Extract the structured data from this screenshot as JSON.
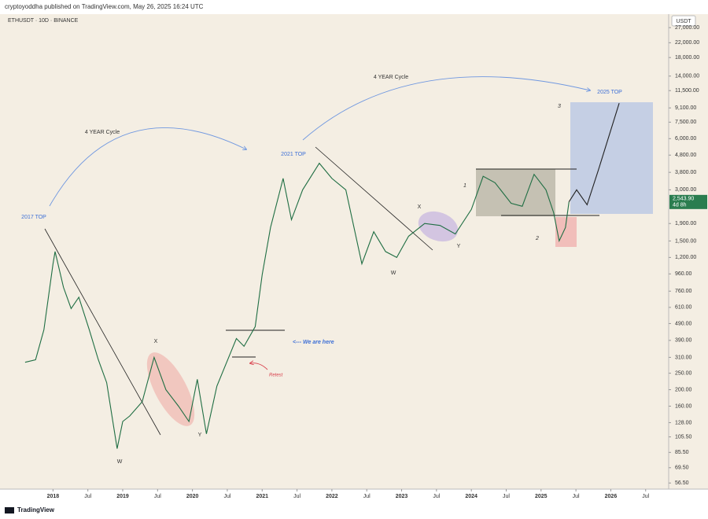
{
  "header": "cryptoyoddha published on TradingView.com, May 26, 2025 16:24 UTC",
  "footer": "TradingView",
  "chart_data": {
    "type": "line",
    "title": "ETHUSDT · 10D · BINANCE",
    "y_unit": "USDT",
    "log_scale": true,
    "grid": false,
    "x": [
      2017.6,
      2017.75,
      2017.87,
      2018.0,
      2018.03,
      2018.15,
      2018.26,
      2018.37,
      2018.52,
      2018.65,
      2018.77,
      2018.92,
      2019.0,
      2019.1,
      2019.28,
      2019.45,
      2019.62,
      2019.8,
      2019.95,
      2020.07,
      2020.2,
      2020.35,
      2020.52,
      2020.63,
      2020.74,
      2020.9,
      2021.0,
      2021.12,
      2021.3,
      2021.42,
      2021.58,
      2021.82,
      2022.0,
      2022.2,
      2022.43,
      2022.6,
      2022.77,
      2022.93,
      2023.1,
      2023.33,
      2023.55,
      2023.77,
      2024.0,
      2024.17,
      2024.34,
      2024.57,
      2024.73,
      2024.9,
      2025.07,
      2025.18,
      2025.26,
      2025.35,
      2025.4,
      2025.51,
      2025.66,
      2025.82,
      2026.12
    ],
    "series": [
      {
        "color": "#1f6e43",
        "values": [
          290,
          300,
          450,
          1100,
          1300,
          800,
          600,
          700,
          450,
          300,
          220,
          90,
          130,
          140,
          170,
          310,
          200,
          160,
          130,
          230,
          110,
          210,
          310,
          400,
          360,
          470,
          950,
          1800,
          3500,
          2000,
          3000,
          4300,
          3500,
          3000,
          1100,
          1700,
          1300,
          1200,
          1600,
          1900,
          1850,
          1650,
          2300,
          3600,
          3300,
          2500,
          2400,
          3700,
          3000,
          2200,
          1500,
          1800,
          2550,
          null,
          null,
          null,
          null
        ]
      },
      {
        "color": "#222222",
        "values": [
          null,
          null,
          null,
          null,
          null,
          null,
          null,
          null,
          null,
          null,
          null,
          null,
          null,
          null,
          null,
          null,
          null,
          null,
          null,
          null,
          null,
          null,
          null,
          null,
          null,
          null,
          null,
          null,
          null,
          null,
          null,
          null,
          null,
          null,
          null,
          null,
          null,
          null,
          null,
          null,
          null,
          null,
          null,
          null,
          null,
          null,
          null,
          null,
          null,
          null,
          null,
          null,
          2550,
          3000,
          2450,
          3900,
          9700
        ]
      }
    ],
    "xlim": [
      2017.24,
      2026.83
    ],
    "xticks": [
      2018,
      {
        "value": 2018.5,
        "label": "Jul"
      },
      2019,
      {
        "value": 2019.5,
        "label": "Jul"
      },
      2020,
      {
        "value": 2020.5,
        "label": "Jul"
      },
      2021,
      {
        "value": 2021.5,
        "label": "Jul"
      },
      2022,
      {
        "value": 2022.5,
        "label": "Jul"
      },
      2023,
      {
        "value": 2023.5,
        "label": "Jul"
      },
      2024,
      {
        "value": 2024.5,
        "label": "Jul"
      },
      2025,
      {
        "value": 2025.5,
        "label": "Jul"
      },
      2026,
      {
        "value": 2026.5,
        "label": "Jul"
      }
    ],
    "ylim": [
      52,
      32400
    ],
    "yticks": [
      {
        "value": 27000,
        "label": "27,000.00"
      },
      {
        "value": 22000,
        "label": "22,000.00"
      },
      {
        "value": 18000,
        "label": "18,000.00"
      },
      {
        "value": 14000,
        "label": "14,000.00"
      },
      {
        "value": 11500,
        "label": "11,500.00"
      },
      {
        "value": 9100,
        "label": "9,100.00"
      },
      {
        "value": 7500,
        "label": "7,500.00"
      },
      {
        "value": 6000,
        "label": "6,000.00"
      },
      {
        "value": 4800,
        "label": "4,800.00"
      },
      {
        "value": 3800,
        "label": "3,800.00"
      },
      {
        "value": 3000,
        "label": "3,000.00"
      },
      {
        "value": 1900,
        "label": "1,900.00"
      },
      {
        "value": 1500,
        "label": "1,500.00"
      },
      {
        "value": 1200,
        "label": "1,200.00"
      },
      {
        "value": 960,
        "label": "960.00"
      },
      {
        "value": 760,
        "label": "760.00"
      },
      {
        "value": 610,
        "label": "610.00"
      },
      {
        "value": 490,
        "label": "490.00"
      },
      {
        "value": 390,
        "label": "390.00"
      },
      {
        "value": 310,
        "label": "310.00"
      },
      {
        "value": 250,
        "label": "250.00"
      },
      {
        "value": 200,
        "label": "200.00"
      },
      {
        "value": 160,
        "label": "160.00"
      },
      {
        "value": 128,
        "label": "128.00"
      },
      {
        "value": 105.5,
        "label": "105.50"
      },
      {
        "value": 85.5,
        "label": "85.50"
      },
      {
        "value": 69.5,
        "label": "69.50"
      },
      {
        "value": 56.5,
        "label": "56.50"
      }
    ],
    "last_price": {
      "value": 2543.9,
      "label": "2,543.90"
    },
    "countdown": "4d 8h",
    "annotations": [
      "2017 TOP",
      "4 YEAR Cycle",
      "2021 TOP",
      "4 YEAR Cycle",
      "2025 TOP",
      "X",
      "W",
      "Y",
      "X",
      "Y",
      "W",
      "1",
      "2",
      "3",
      "<--- We are here",
      "Retest"
    ]
  }
}
